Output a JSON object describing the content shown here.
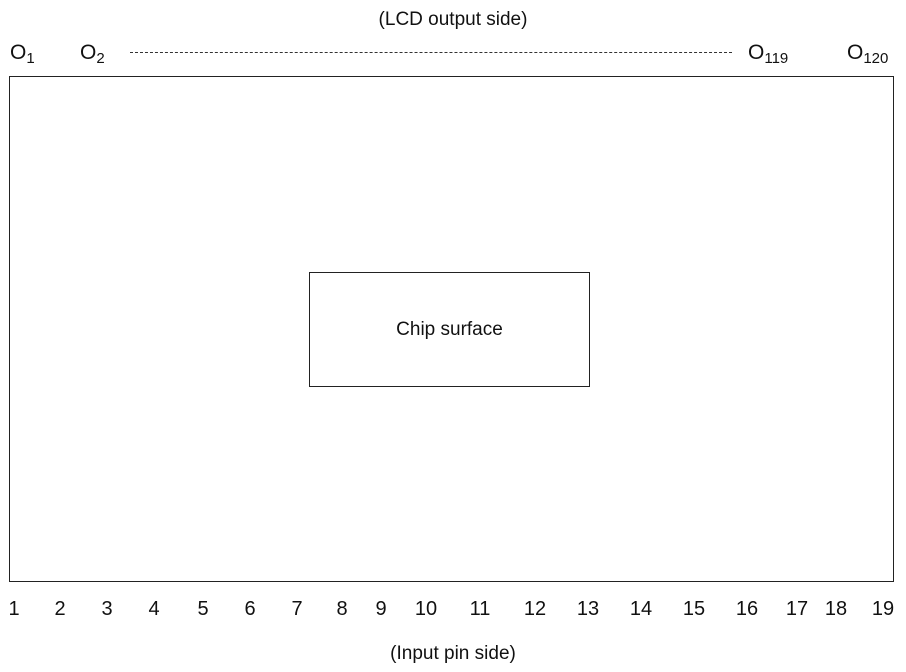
{
  "top_caption": "(LCD output side)",
  "bottom_caption": "(Input pin side)",
  "output_labels": [
    {
      "base": "O",
      "sub": "1"
    },
    {
      "base": "O",
      "sub": "2"
    },
    {
      "base": "O",
      "sub": "119"
    },
    {
      "base": "O",
      "sub": "120"
    }
  ],
  "chip_surface_label": "Chip surface",
  "input_pins": [
    "1",
    "2",
    "3",
    "4",
    "5",
    "6",
    "7",
    "8",
    "9",
    "10",
    "11",
    "12",
    "13",
    "14",
    "15",
    "16",
    "17",
    "18",
    "19"
  ]
}
